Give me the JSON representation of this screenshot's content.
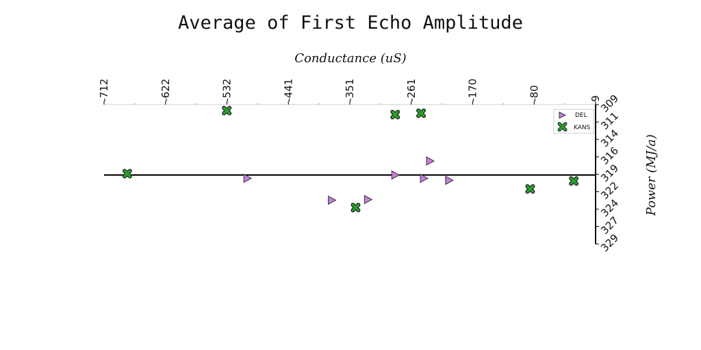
{
  "chart_data": {
    "type": "scatter",
    "title": "Average of First Echo Amplitude",
    "xlabel": "Conductance (uS)",
    "ylabel": "Power (MJ/a)",
    "x_ticks": [
      "-712",
      "-622",
      "-532",
      "-441",
      "-351",
      "-261",
      "-170",
      "-80",
      "9"
    ],
    "y_ticks": [
      "309",
      "311",
      "314",
      "316",
      "319",
      "322",
      "324",
      "327",
      "329"
    ],
    "xlim": [
      -712,
      9
    ],
    "ylim": [
      308,
      329
    ],
    "x_axis_position": "top",
    "y_axis_position": "right",
    "horizontal_reference_line": 319,
    "legend_position": "top-right",
    "grid": false,
    "series": [
      {
        "name": "DEL",
        "marker": "triangle-right",
        "color": "#c77ddb",
        "points": [
          {
            "x": -285,
            "y": 318.6
          },
          {
            "x": -243,
            "y": 319.1
          },
          {
            "x": -206,
            "y": 319.4
          },
          {
            "x": -325,
            "y": 322.3
          },
          {
            "x": -378,
            "y": 322.4
          },
          {
            "x": -502,
            "y": 319.1
          }
        ]
      },
      {
        "name": "KANS",
        "marker": "x",
        "color": "#2ca02c",
        "points": [
          {
            "x": -532,
            "y": 308.9
          },
          {
            "x": -285,
            "y": 309.5
          },
          {
            "x": -247,
            "y": 309.3
          },
          {
            "x": -678,
            "y": 318.4
          },
          {
            "x": -87,
            "y": 320.7
          },
          {
            "x": -23,
            "y": 319.5
          },
          {
            "x": -343,
            "y": 323.5
          }
        ]
      },
      {
        "name": "",
        "marker": "triangle-right",
        "color": "#c77ddb",
        "points": [
          {
            "x": -234,
            "y": 316.5
          }
        ]
      }
    ]
  }
}
